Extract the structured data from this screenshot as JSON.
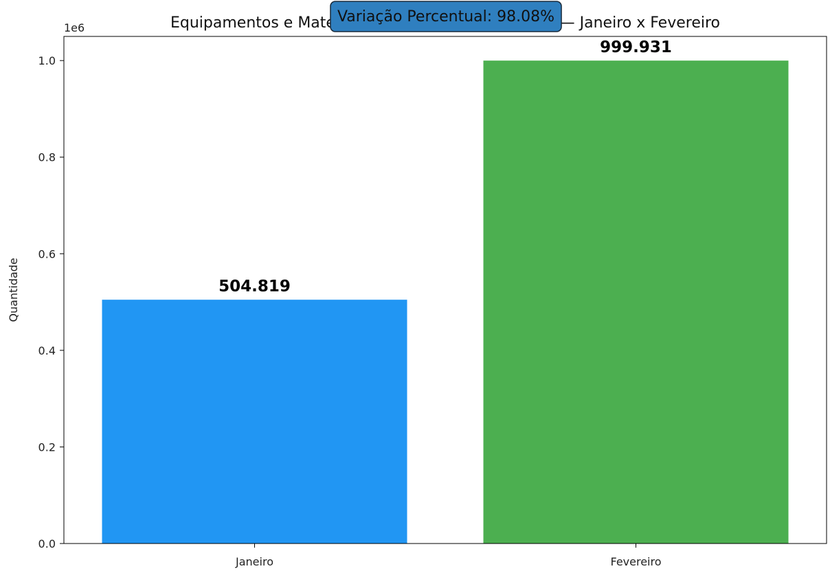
{
  "chart_data": {
    "type": "bar",
    "title": "Equipamentos e Materiais Médicos Enviados à CAF — Janeiro x Fevereiro",
    "xlabel": "",
    "ylabel": "Quantidade",
    "y_offset_label": "1e6",
    "categories": [
      "Janeiro",
      "Fevereiro"
    ],
    "values": [
      504819,
      999931
    ],
    "data_labels": [
      "504.819",
      "999.931"
    ],
    "colors": [
      "#2196F3",
      "#4CAF50"
    ],
    "ylim": [
      0,
      1050000
    ],
    "yticks": [
      0,
      200000,
      400000,
      600000,
      800000,
      1000000
    ],
    "ytick_labels": [
      "0.0",
      "0.2",
      "0.4",
      "0.6",
      "0.8",
      "1.0"
    ],
    "grid": false,
    "annotation": {
      "text": "Variação Percentual: 98.08%",
      "background": "#2f7fbf",
      "border": "#1a2a3a"
    }
  }
}
